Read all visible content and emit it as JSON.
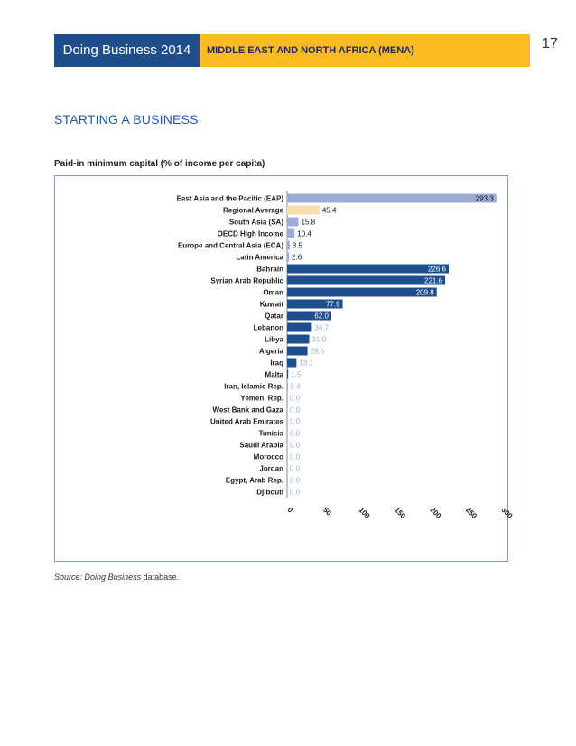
{
  "header": {
    "left_title": "Doing Business 2014",
    "region_title": "MIDDLE EAST AND NORTH AFRICA (MENA)",
    "page_number": "17"
  },
  "section_title": "STARTING A BUSINESS",
  "chart_title": "Paid-in minimum capital (% of income per capita)",
  "source": {
    "prefix": "Source:",
    "name": "Doing Business",
    "suffix": "database."
  },
  "colors": {
    "header_blue": "#1f4e8c",
    "header_gold": "#fbbb21",
    "comparator": "#9dacd4",
    "regional_average": "#f9dcb0",
    "economy": "#1f4e8c",
    "zero_label": "#9dacd4",
    "frame": "#7ea0c8"
  },
  "chart_data": {
    "type": "bar",
    "orientation": "horizontal",
    "title": "Paid-in minimum capital (% of income per capita)",
    "xlim": [
      0,
      300
    ],
    "xticks": [
      "0",
      "50",
      "100",
      "150",
      "200",
      "250",
      "300"
    ],
    "bars": [
      {
        "label": "East Asia and the Pacific (EAP)",
        "value": 293.3,
        "display": "293.3",
        "group": "comparator"
      },
      {
        "label": "Regional Average",
        "value": 45.4,
        "display": "45.4",
        "group": "regional_average"
      },
      {
        "label": "South Asia (SA)",
        "value": 15.8,
        "display": "15.8",
        "group": "comparator"
      },
      {
        "label": "OECD High Income",
        "value": 10.4,
        "display": "10.4",
        "group": "comparator"
      },
      {
        "label": "Europe and Central Asia (ECA)",
        "value": 3.5,
        "display": "3.5",
        "group": "comparator"
      },
      {
        "label": "Latin America",
        "value": 2.6,
        "display": "2.6",
        "group": "comparator"
      },
      {
        "label": "Bahrain",
        "value": 226.6,
        "display": "226.6",
        "group": "economy"
      },
      {
        "label": "Syrian Arab Republic",
        "value": 221.6,
        "display": "221.6",
        "group": "economy"
      },
      {
        "label": "Oman",
        "value": 209.8,
        "display": "209.8",
        "group": "economy"
      },
      {
        "label": "Kuwait",
        "value": 77.9,
        "display": "77.9",
        "group": "economy"
      },
      {
        "label": "Qatar",
        "value": 62.0,
        "display": "62.0",
        "group": "economy"
      },
      {
        "label": "Lebanon",
        "value": 34.7,
        "display": "34.7",
        "group": "economy"
      },
      {
        "label": "Libya",
        "value": 31.0,
        "display": "31.0",
        "group": "economy"
      },
      {
        "label": "Algeria",
        "value": 28.6,
        "display": "28.6",
        "group": "economy"
      },
      {
        "label": "Iraq",
        "value": 13.1,
        "display": "13.1",
        "group": "economy"
      },
      {
        "label": "Malta",
        "value": 1.5,
        "display": "1.5",
        "group": "economy"
      },
      {
        "label": "Iran, Islamic Rep.",
        "value": 0.4,
        "display": "0.4",
        "group": "economy"
      },
      {
        "label": "Yemen, Rep.",
        "value": 0.0,
        "display": "0.0",
        "group": "economy"
      },
      {
        "label": "West Bank and Gaza",
        "value": 0.0,
        "display": "0.0",
        "group": "economy"
      },
      {
        "label": "United Arab Emirates",
        "value": 0.0,
        "display": "0.0",
        "group": "economy"
      },
      {
        "label": "Tunisia",
        "value": 0.0,
        "display": "0.0",
        "group": "economy"
      },
      {
        "label": "Saudi Arabia",
        "value": 0.0,
        "display": "0.0",
        "group": "economy"
      },
      {
        "label": "Morocco",
        "value": 0.0,
        "display": "0.0",
        "group": "economy"
      },
      {
        "label": "Jordan",
        "value": 0.0,
        "display": "0.0",
        "group": "economy"
      },
      {
        "label": "Egypt, Arab Rep.",
        "value": 0.0,
        "display": "0.0",
        "group": "economy"
      },
      {
        "label": "Djibouti",
        "value": 0.0,
        "display": "0.0",
        "group": "economy"
      }
    ]
  }
}
